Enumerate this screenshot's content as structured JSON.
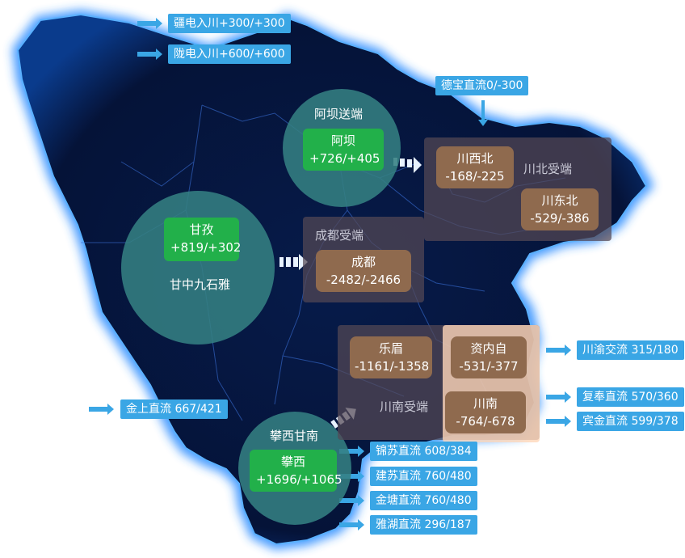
{
  "send_ends": [
    {
      "name": "阿坝送端",
      "station": "阿坝",
      "value": "+726/+405"
    },
    {
      "name": "甘中九石雅",
      "station": "甘孜",
      "value": "+819/+302"
    },
    {
      "name": "攀西甘南",
      "station": "攀西",
      "value": "+1696/+1065"
    }
  ],
  "receive_ends": {
    "chengdu": {
      "label": "成都受端",
      "stations": [
        {
          "name": "成都",
          "value": "-2482/-2466"
        }
      ]
    },
    "chuanbei": {
      "label": "川北受端",
      "stations": [
        {
          "name": "川西北",
          "value": "-168/-225"
        },
        {
          "name": "川东北",
          "value": "-529/-386"
        }
      ]
    },
    "chuannan": {
      "label": "川南受端",
      "stations": [
        {
          "name": "乐眉",
          "value": "-1161/-1358"
        },
        {
          "name": "资内自",
          "value": "-531/-377"
        },
        {
          "name": "川南",
          "value": "-764/-678"
        }
      ]
    }
  },
  "incoming_tags": [
    {
      "text": "疆电入川+300/+300"
    },
    {
      "text": "陇电入川+600/+600"
    },
    {
      "text": "德宝直流0/-300"
    },
    {
      "text": "金上直流 667/421"
    }
  ],
  "outgoing_tags": [
    {
      "text": "川渝交流 315/180"
    },
    {
      "text": "复奉直流 570/360"
    },
    {
      "text": "宾金直流 599/378"
    },
    {
      "text": "锦苏直流 608/384"
    },
    {
      "text": "建苏直流 760/480"
    },
    {
      "text": "金塘直流 760/480"
    },
    {
      "text": "雅湖直流 296/187"
    }
  ],
  "colors": {
    "map_fill": "#04102f",
    "map_glow": "#2b8cff",
    "send_circle": "#348082",
    "green_box": "#22b04a",
    "brown_box": "#8f6a4e",
    "tag": "#3aa6e5"
  }
}
